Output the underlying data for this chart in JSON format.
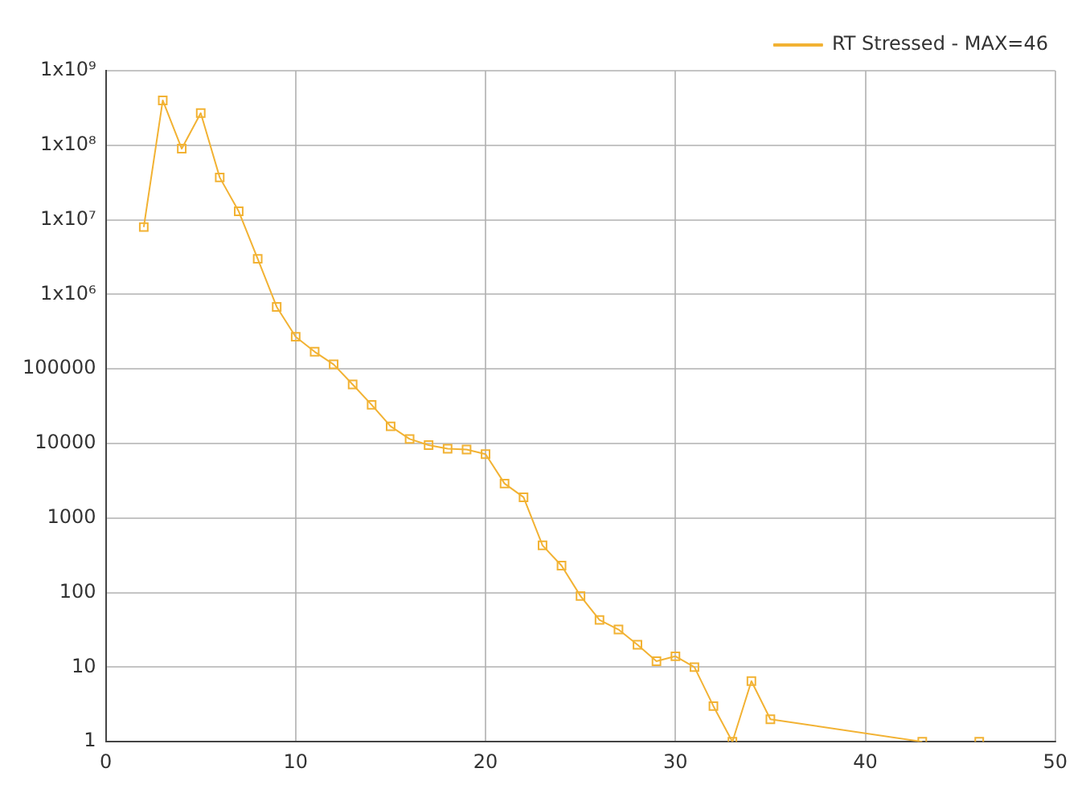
{
  "chart_data": {
    "type": "line",
    "x": [
      2,
      3,
      4,
      5,
      6,
      7,
      8,
      9,
      10,
      11,
      12,
      13,
      14,
      15,
      16,
      17,
      18,
      19,
      20,
      21,
      22,
      23,
      24,
      25,
      26,
      27,
      28,
      29,
      30,
      31,
      32,
      33,
      34,
      35,
      43,
      44,
      46
    ],
    "series": [
      {
        "name": "RT Stressed - MAX=46",
        "color": "#f2b233",
        "values": [
          8000000,
          400000000,
          90000000,
          270000000,
          37000000,
          13000000,
          3000000,
          680000,
          270000,
          170000,
          115000,
          62000,
          33000,
          17000,
          11500,
          9500,
          8500,
          8300,
          7200,
          2900,
          1900,
          430,
          230,
          90,
          43,
          32,
          20,
          12,
          14,
          10,
          3,
          1,
          6.5,
          2,
          1,
          null,
          1
        ]
      }
    ],
    "xlim": [
      0,
      50
    ],
    "xticks": [
      0,
      10,
      20,
      30,
      40,
      50
    ],
    "ylim": [
      1,
      1000000000
    ],
    "yticks": [
      1,
      10,
      100,
      1000,
      10000,
      100000,
      {
        "value": 1000000,
        "label": "1x10⁶"
      },
      {
        "value": 10000000,
        "label": "1x10⁷"
      },
      {
        "value": 100000000,
        "label": "1x10⁸"
      },
      {
        "value": 1000000000,
        "label": "1x10⁹"
      }
    ],
    "log": "y",
    "grid": true,
    "legend": "top right",
    "marker": "square",
    "line_style": "solid"
  }
}
